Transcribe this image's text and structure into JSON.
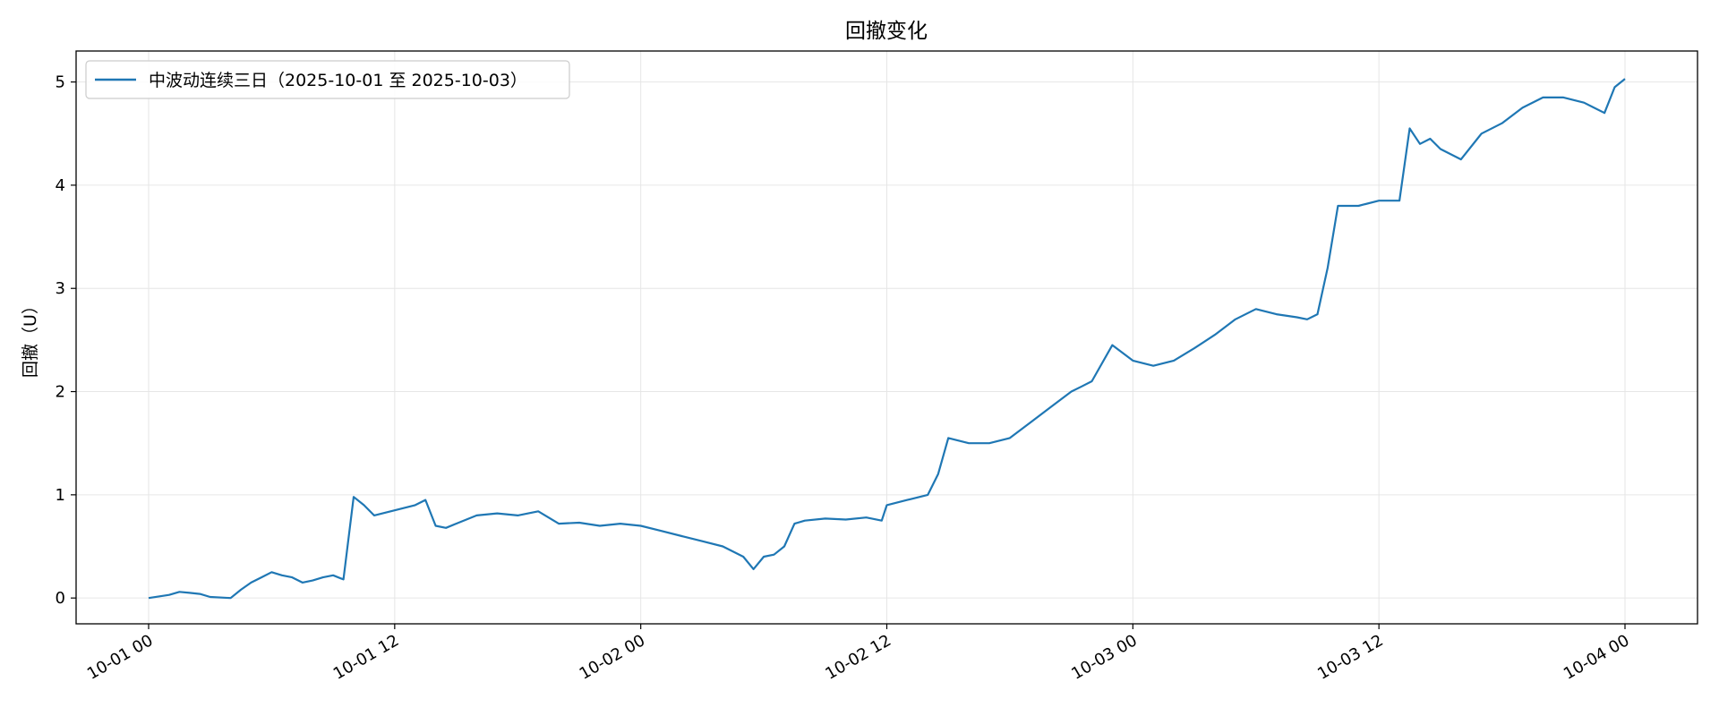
{
  "chart_data": {
    "type": "line",
    "title": "回撤变化",
    "xlabel": "",
    "ylabel": "回撤（U）",
    "x_range": [
      "2025-10-01 00:00",
      "2025-10-04 00:00"
    ],
    "ylim": [
      -0.25,
      5.3
    ],
    "x_ticks": [
      {
        "t": "2025-10-01 00:00",
        "label": "10-01 00"
      },
      {
        "t": "2025-10-01 12:00",
        "label": "10-01 12"
      },
      {
        "t": "2025-10-02 00:00",
        "label": "10-02 00"
      },
      {
        "t": "2025-10-02 12:00",
        "label": "10-02 12"
      },
      {
        "t": "2025-10-03 00:00",
        "label": "10-03 00"
      },
      {
        "t": "2025-10-03 12:00",
        "label": "10-03 12"
      },
      {
        "t": "2025-10-04 00:00",
        "label": "10-04 00"
      }
    ],
    "y_ticks": [
      0,
      1,
      2,
      3,
      4,
      5
    ],
    "grid": true,
    "legend": "top-left",
    "series": [
      {
        "name": "中波动连续三日（2025-10-01 至 2025-10-03）",
        "color": "#1f77b4",
        "x": [
          "2025-10-01 00:00",
          "2025-10-01 01:00",
          "2025-10-01 01:30",
          "2025-10-01 02:00",
          "2025-10-01 02:30",
          "2025-10-01 03:00",
          "2025-10-01 04:00",
          "2025-10-01 04:30",
          "2025-10-01 05:00",
          "2025-10-01 05:30",
          "2025-10-01 06:00",
          "2025-10-01 06:30",
          "2025-10-01 07:00",
          "2025-10-01 07:30",
          "2025-10-01 08:00",
          "2025-10-01 08:30",
          "2025-10-01 09:00",
          "2025-10-01 09:30",
          "2025-10-01 10:00",
          "2025-10-01 10:30",
          "2025-10-01 11:00",
          "2025-10-01 12:00",
          "2025-10-01 13:00",
          "2025-10-01 13:30",
          "2025-10-01 14:00",
          "2025-10-01 14:30",
          "2025-10-01 15:00",
          "2025-10-01 16:00",
          "2025-10-01 17:00",
          "2025-10-01 18:00",
          "2025-10-01 19:00",
          "2025-10-01 20:00",
          "2025-10-01 21:00",
          "2025-10-01 22:00",
          "2025-10-01 23:00",
          "2025-10-02 00:00",
          "2025-10-02 01:00",
          "2025-10-02 02:00",
          "2025-10-02 03:00",
          "2025-10-02 04:00",
          "2025-10-02 05:00",
          "2025-10-02 05:30",
          "2025-10-02 06:00",
          "2025-10-02 06:30",
          "2025-10-02 07:00",
          "2025-10-02 07:30",
          "2025-10-02 08:00",
          "2025-10-02 09:00",
          "2025-10-02 10:00",
          "2025-10-02 11:00",
          "2025-10-02 11:45",
          "2025-10-02 12:00",
          "2025-10-02 13:00",
          "2025-10-02 14:00",
          "2025-10-02 14:30",
          "2025-10-02 15:00",
          "2025-10-02 16:00",
          "2025-10-02 17:00",
          "2025-10-02 18:00",
          "2025-10-02 19:00",
          "2025-10-02 20:00",
          "2025-10-02 21:00",
          "2025-10-02 21:30",
          "2025-10-02 22:00",
          "2025-10-02 23:00",
          "2025-10-03 00:00",
          "2025-10-03 01:00",
          "2025-10-03 02:00",
          "2025-10-03 03:00",
          "2025-10-03 04:00",
          "2025-10-03 05:00",
          "2025-10-03 06:00",
          "2025-10-03 07:00",
          "2025-10-03 08:00",
          "2025-10-03 08:30",
          "2025-10-03 09:00",
          "2025-10-03 09:30",
          "2025-10-03 10:00",
          "2025-10-03 11:00",
          "2025-10-03 12:00",
          "2025-10-03 13:00",
          "2025-10-03 13:30",
          "2025-10-03 14:00",
          "2025-10-03 14:30",
          "2025-10-03 15:00",
          "2025-10-03 16:00",
          "2025-10-03 17:00",
          "2025-10-03 18:00",
          "2025-10-03 19:00",
          "2025-10-03 20:00",
          "2025-10-03 21:00",
          "2025-10-03 22:00",
          "2025-10-03 23:00",
          "2025-10-03 23:30",
          "2025-10-04 00:00"
        ],
        "values": [
          0.0,
          0.03,
          0.06,
          0.05,
          0.04,
          0.01,
          0.0,
          0.08,
          0.15,
          0.2,
          0.25,
          0.22,
          0.2,
          0.15,
          0.17,
          0.2,
          0.22,
          0.18,
          0.98,
          0.9,
          0.8,
          0.85,
          0.9,
          0.95,
          0.7,
          0.68,
          0.72,
          0.8,
          0.82,
          0.8,
          0.84,
          0.72,
          0.73,
          0.7,
          0.72,
          0.7,
          0.65,
          0.6,
          0.55,
          0.5,
          0.4,
          0.28,
          0.4,
          0.42,
          0.5,
          0.72,
          0.75,
          0.77,
          0.76,
          0.78,
          0.75,
          0.9,
          0.95,
          1.0,
          1.2,
          1.55,
          1.5,
          1.5,
          1.55,
          1.7,
          1.85,
          2.0,
          2.05,
          2.1,
          2.45,
          2.3,
          2.25,
          2.3,
          2.42,
          2.55,
          2.7,
          2.8,
          2.75,
          2.72,
          2.7,
          2.75,
          3.2,
          3.8,
          3.8,
          3.85,
          3.85,
          4.55,
          4.4,
          4.45,
          4.35,
          4.25,
          4.5,
          4.6,
          4.75,
          4.85,
          4.85,
          4.8,
          4.7,
          4.95,
          5.03
        ]
      }
    ]
  }
}
